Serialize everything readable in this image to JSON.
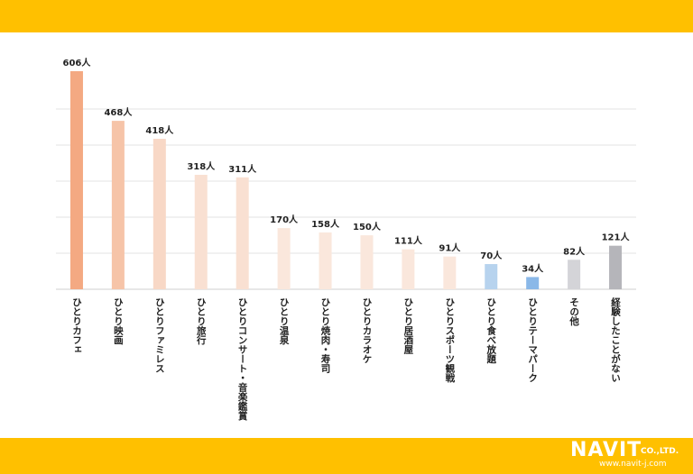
{
  "chart_data": {
    "type": "bar",
    "categories": [
      "ひとりカフェ",
      "ひとり映画",
      "ひとりファミレス",
      "ひとり旅行",
      "ひとりコンサート・音楽鑑賞",
      "ひとり温泉",
      "ひとり焼肉・寿司",
      "ひとりカラオケ",
      "ひとり居酒屋",
      "ひとりスポーツ観戦",
      "ひとり食べ放題",
      "ひとりテーマパーク",
      "その他",
      "経験したことがない"
    ],
    "values": [
      606,
      468,
      418,
      318,
      311,
      170,
      158,
      150,
      111,
      91,
      70,
      34,
      82,
      121
    ],
    "value_labels": [
      "606人",
      "468人",
      "418人",
      "318人",
      "311人",
      "170人",
      "158人",
      "150人",
      "111人",
      "91人",
      "70人",
      "34人",
      "82人",
      "121人"
    ],
    "unit": "人",
    "ylim": [
      0,
      600
    ],
    "grid": true,
    "bar_colors": [
      "#F4A982",
      "#F6C4A8",
      "#F8D8C6",
      "#F9E0D2",
      "#F9E0D2",
      "#FAE7DC",
      "#FAE7DC",
      "#FAE7DC",
      "#FAE7DC",
      "#FAE7DC",
      "#B7D3EE",
      "#8AB8E8",
      "#D4D4D8",
      "#B5B5BA"
    ]
  },
  "colors": {
    "band": "#FFC000",
    "grid": "#E3E3E3",
    "axis": "#CFCFCF",
    "text": "#222222"
  },
  "logo": {
    "brand": "NAVIT",
    "suffix": "CO.,LTD.",
    "url": "www.navit-j.com"
  }
}
